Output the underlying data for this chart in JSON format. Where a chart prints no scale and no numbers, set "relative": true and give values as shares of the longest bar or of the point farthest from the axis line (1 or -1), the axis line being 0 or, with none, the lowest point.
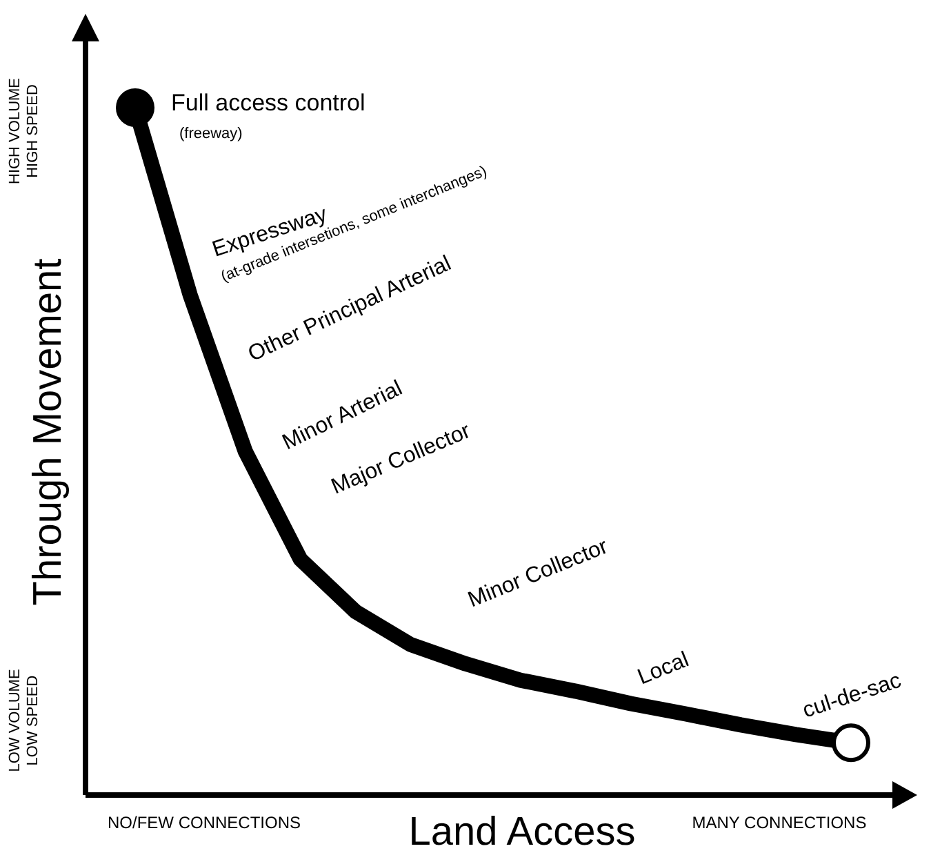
{
  "chart_data": {
    "type": "line",
    "relative": true,
    "xlabel": "Land Access",
    "ylabel": "Through Movement",
    "categories": [
      null,
      null,
      null,
      null,
      null,
      null,
      null,
      null,
      null,
      null,
      null,
      null,
      null,
      null
    ],
    "series": [
      {
        "color": "#000000",
        "values": [
          1,
          0.727,
          0.5,
          0.343,
          0.267,
          0.219,
          0.191,
          0.167,
          0.151,
          0.133,
          0.118,
          0.102,
          0.088,
          0.076
        ]
      }
    ],
    "line_style": "solid",
    "annotations": [
      "HIGH VOLUME\nHIGH SPEED",
      "LOW VOLUME\nLOW SPEED",
      "NO/FEW CONNECTIONS",
      "MANY CONNECTIONS",
      "Full access control",
      "(freeway)",
      "Expressway",
      "(at-grade intersetions, some interchanges)",
      "Other Principal Arterial",
      "Minor Arterial",
      "Major Collector",
      "Minor Collector",
      "Local",
      "cul-de-sac"
    ]
  }
}
